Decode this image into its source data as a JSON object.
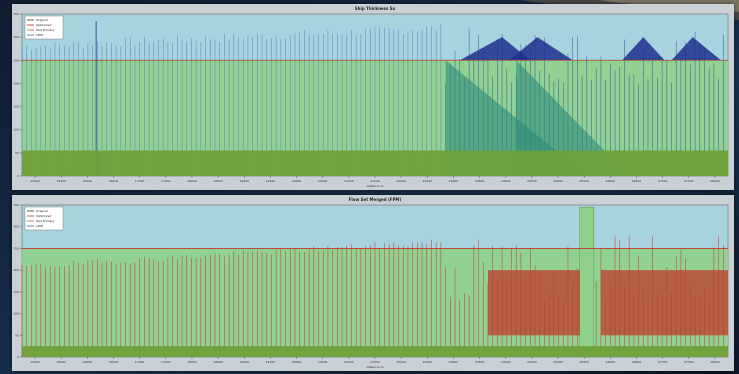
{
  "chart_data": [
    {
      "type": "area",
      "title": "Ship Thickness Sx",
      "xlabel": "Distance m",
      "ylabel": "",
      "ylim": [
        0,
        350
      ],
      "y_ticks": [
        "0",
        "50",
        "100",
        "150",
        "200",
        "250",
        "300",
        "350"
      ],
      "x_ticks": [
        "15000",
        "15500",
        "16000",
        "16500",
        "17000",
        "17500",
        "18000",
        "18500",
        "19000",
        "19500",
        "20000",
        "20500",
        "21000",
        "21500",
        "22000",
        "22500",
        "23000",
        "23500",
        "24000",
        "24500",
        "25000",
        "25500",
        "26000",
        "26500",
        "27000",
        "27500",
        "28000"
      ],
      "legend": {
        "position": "top-left",
        "entries": [
          {
            "name": "Original",
            "color": "#333333"
          },
          {
            "name": "Optimized",
            "color": "#b03020"
          },
          {
            "name": "Test Primary",
            "color": "#b06050"
          },
          {
            "name": "LPIM",
            "color": "#3a6fb0"
          }
        ]
      },
      "colors": {
        "plot_bg": "#a7d3df",
        "fill": "#8fd08a",
        "base": "#6fa03a",
        "red": "#c0392b",
        "blue": "#1f2f8f",
        "teal": "#2e8b7a",
        "limit": "#c0392b"
      },
      "limit_line": 250,
      "base_level": 55
    },
    {
      "type": "area",
      "title": "Flow Set Merged (FPM)",
      "xlabel": "Distance m",
      "ylabel": "",
      "ylim": [
        0,
        350
      ],
      "y_ticks": [
        "0",
        "50",
        "100",
        "150",
        "200",
        "250",
        "300",
        "350"
      ],
      "x_ticks": [
        "15000",
        "15500",
        "16000",
        "16500",
        "17000",
        "17500",
        "18000",
        "18500",
        "19000",
        "19500",
        "20000",
        "20500",
        "21000",
        "21500",
        "22000",
        "22500",
        "23000",
        "23500",
        "24000",
        "24500",
        "25000",
        "25500",
        "26000",
        "26500",
        "27000",
        "27500",
        "28000"
      ],
      "legend": {
        "position": "top-left",
        "entries": [
          {
            "name": "Original",
            "color": "#333333"
          },
          {
            "name": "Optimized",
            "color": "#b03020"
          },
          {
            "name": "Test Primary",
            "color": "#b06050"
          },
          {
            "name": "LPIM",
            "color": "#3a6fb0"
          }
        ]
      },
      "colors": {
        "plot_bg": "#a7d3df",
        "fill": "#8fd08a",
        "base": "#6fa03a",
        "red": "#c0392b",
        "blue": "#1f2f8f",
        "teal": "#2e8b7a",
        "limit": "#c0392b"
      },
      "limit_line": 250,
      "base_level": 25
    }
  ]
}
